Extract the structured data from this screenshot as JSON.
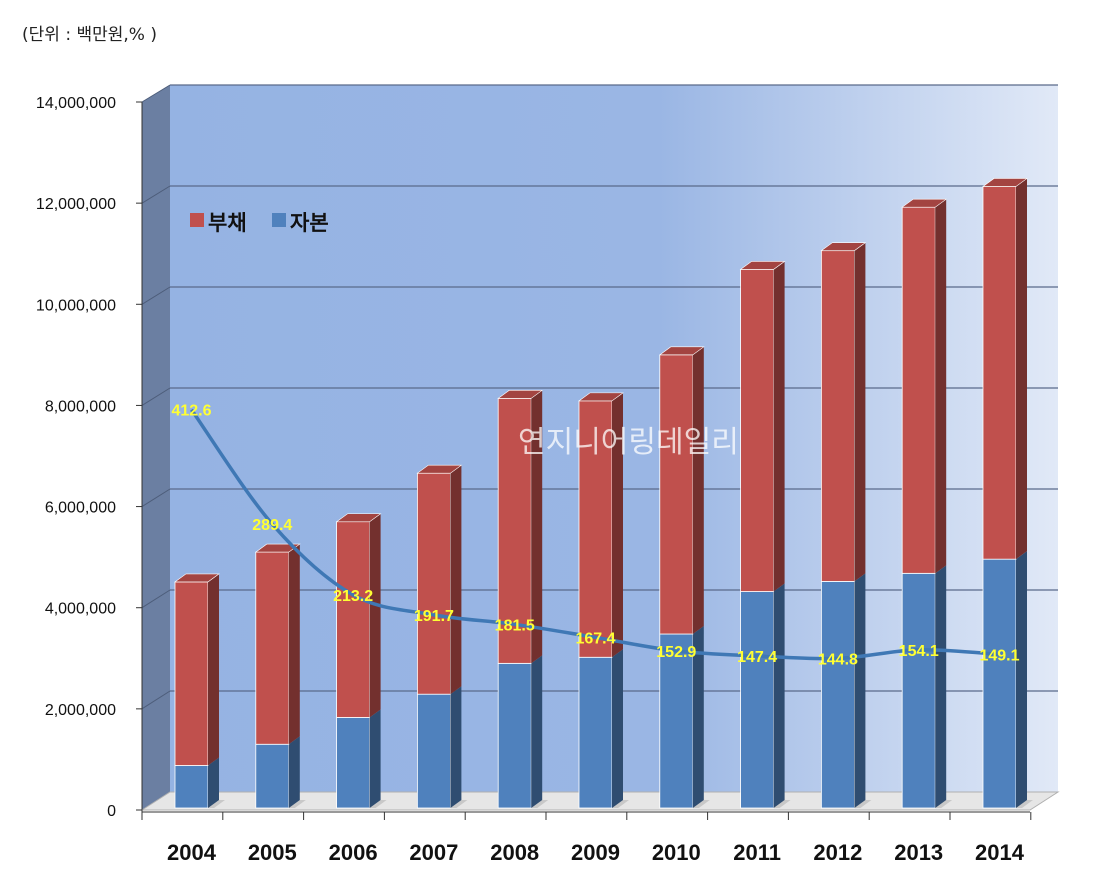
{
  "unit_label": "(단위 : 백만원,% )",
  "watermark": "연지니어링데일리",
  "colors": {
    "debt": "#c0504d",
    "equity": "#4f81bd",
    "ratio_line": "#3f78b5",
    "ratio_label": "#ffff33"
  },
  "chart_data": {
    "type": "bar",
    "stacked": true,
    "categories": [
      "2004",
      "2005",
      "2006",
      "2007",
      "2008",
      "2009",
      "2010",
      "2011",
      "2012",
      "2013",
      "2014"
    ],
    "series": [
      {
        "name": "자본",
        "values": [
          880000,
          1300000,
          1830000,
          2290000,
          2900000,
          3020000,
          3480000,
          4320000,
          4520000,
          4680000,
          4960000
        ]
      },
      {
        "name": "부채",
        "values": [
          3630000,
          3800000,
          3870000,
          4370000,
          5240000,
          5070000,
          5520000,
          6370000,
          6540000,
          7240000,
          7370000
        ]
      }
    ],
    "line_series": {
      "values": [
        412.6,
        289.4,
        213.2,
        191.7,
        181.5,
        167.4,
        152.9,
        147.4,
        144.8,
        154.1,
        149.1
      ]
    },
    "yticks": [
      "0",
      "2,000,000",
      "4,000,000",
      "6,000,000",
      "8,000,000",
      "10,000,000",
      "12,000,000",
      "14,000,000"
    ],
    "ylim": [
      0,
      14000000
    ],
    "legend": {
      "position": "top-left",
      "entries": [
        "부채",
        "자본"
      ]
    },
    "grid": true
  }
}
